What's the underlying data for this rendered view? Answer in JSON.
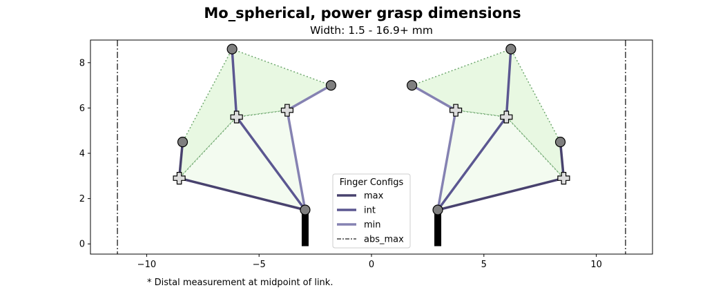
{
  "chart_data": {
    "type": "line",
    "title": "Mo_spherical, power grasp dimensions",
    "subtitle": "Width: 1.5 - 16.9+ mm",
    "footnote": "* Distal measurement at midpoint of link.",
    "xlim": [
      -12.5,
      12.5
    ],
    "ylim": [
      -0.45,
      9.0
    ],
    "x_ticks": [
      -10,
      -5,
      0,
      5,
      10
    ],
    "x_tick_labels": [
      "−10",
      "−5",
      "0",
      "5",
      "10"
    ],
    "y_ticks": [
      0,
      2,
      4,
      6,
      8
    ],
    "y_tick_labels": [
      "0",
      "2",
      "4",
      "6",
      "8"
    ],
    "grid": false,
    "legend": {
      "title": "Finger Configs",
      "placement": "lower-center",
      "entries": [
        {
          "label": "max",
          "style": "solid",
          "color": "#48426e"
        },
        {
          "label": "int",
          "style": "solid",
          "color": "#5b5791"
        },
        {
          "label": "min",
          "style": "solid",
          "color": "#8582b2"
        },
        {
          "label": "abs_max",
          "style": "dashdot",
          "color": "#444444"
        }
      ]
    },
    "colors": {
      "max": "#48426e",
      "int": "#5b5791",
      "min": "#8582b2",
      "abs_max": "#444444",
      "envelope_fill": "#e8f8e2",
      "inner_fill": "#f3fbf0",
      "envelope_line": "#6fa86f",
      "joint_circle": "#7f7f7f",
      "joint_cross": "#dcdcdc",
      "base": "#000000"
    },
    "abs_max_x": [
      -11.3,
      11.3
    ],
    "fingers": [
      {
        "side": "left",
        "base": [
          -2.95,
          1.5
        ],
        "base_bottom": -0.1,
        "max": [
          [
            -2.95,
            1.5
          ],
          [
            -8.55,
            2.9
          ],
          [
            -8.4,
            4.5
          ]
        ],
        "int": [
          [
            -2.95,
            1.5
          ],
          [
            -6.0,
            5.6
          ],
          [
            -6.2,
            8.6
          ]
        ],
        "min": [
          [
            -2.95,
            1.5
          ],
          [
            -3.75,
            5.9
          ],
          [
            -1.8,
            7.0
          ]
        ],
        "envelope": [
          [
            -8.55,
            2.9
          ],
          [
            -8.4,
            4.5
          ],
          [
            -6.2,
            8.6
          ],
          [
            -1.8,
            7.0
          ],
          [
            -3.75,
            5.9
          ],
          [
            -6.0,
            5.6
          ]
        ],
        "inner": [
          [
            -2.95,
            1.5
          ],
          [
            -8.55,
            2.9
          ],
          [
            -6.0,
            5.6
          ],
          [
            -3.75,
            5.9
          ]
        ],
        "circles": [
          [
            -8.4,
            4.5
          ],
          [
            -6.2,
            8.6
          ],
          [
            -1.8,
            7.0
          ],
          [
            -2.95,
            1.5
          ]
        ],
        "crosses": [
          [
            -8.55,
            2.9
          ],
          [
            -6.0,
            5.6
          ],
          [
            -3.75,
            5.9
          ]
        ]
      },
      {
        "side": "right",
        "base": [
          2.95,
          1.5
        ],
        "base_bottom": -0.1,
        "max": [
          [
            2.95,
            1.5
          ],
          [
            8.55,
            2.9
          ],
          [
            8.4,
            4.5
          ]
        ],
        "int": [
          [
            2.95,
            1.5
          ],
          [
            6.0,
            5.6
          ],
          [
            6.2,
            8.6
          ]
        ],
        "min": [
          [
            2.95,
            1.5
          ],
          [
            3.75,
            5.9
          ],
          [
            1.8,
            7.0
          ]
        ],
        "envelope": [
          [
            8.55,
            2.9
          ],
          [
            8.4,
            4.5
          ],
          [
            6.2,
            8.6
          ],
          [
            1.8,
            7.0
          ],
          [
            3.75,
            5.9
          ],
          [
            6.0,
            5.6
          ]
        ],
        "inner": [
          [
            2.95,
            1.5
          ],
          [
            8.55,
            2.9
          ],
          [
            6.0,
            5.6
          ],
          [
            3.75,
            5.9
          ]
        ],
        "circles": [
          [
            8.4,
            4.5
          ],
          [
            6.2,
            8.6
          ],
          [
            1.8,
            7.0
          ],
          [
            2.95,
            1.5
          ]
        ],
        "crosses": [
          [
            8.55,
            2.9
          ],
          [
            6.0,
            5.6
          ],
          [
            3.75,
            5.9
          ]
        ]
      }
    ]
  }
}
